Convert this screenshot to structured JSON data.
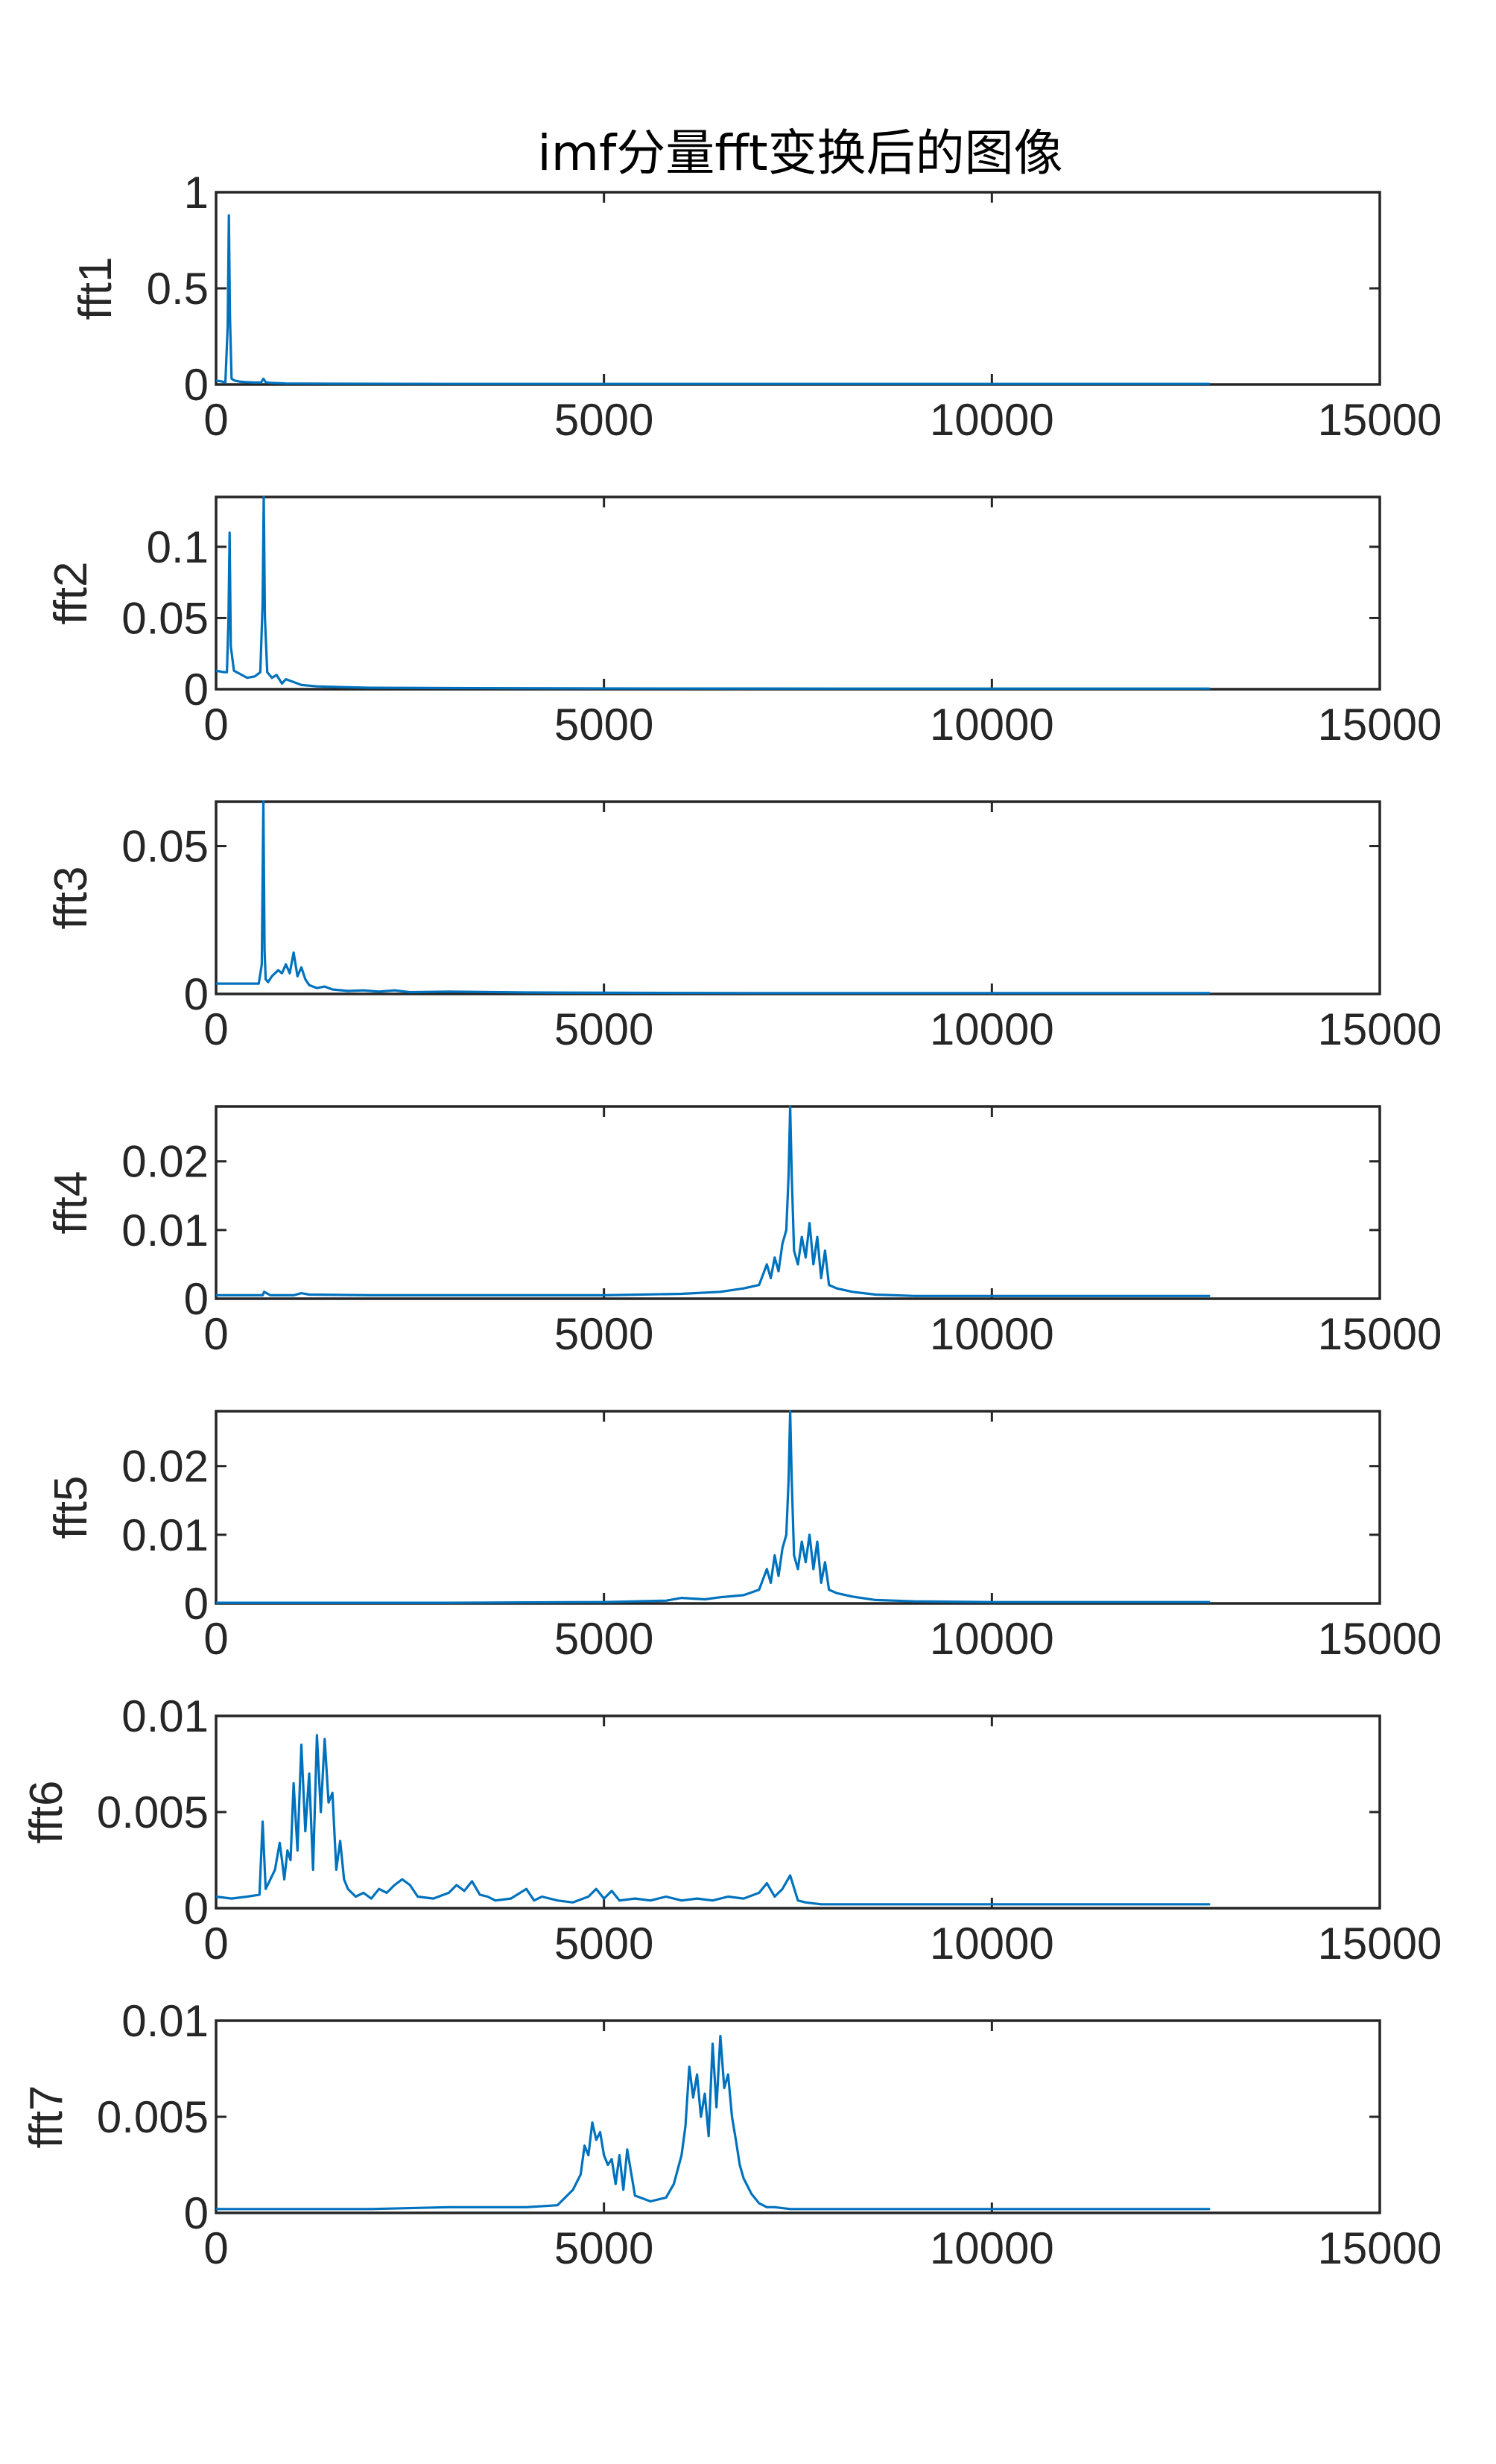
{
  "figure": {
    "title": "imf分量fft变换后的图像"
  },
  "colors": {
    "series": "#0072BD",
    "axis": "#262626",
    "background": "#ffffff"
  },
  "chart_data": [
    {
      "type": "line",
      "title": "imf分量fft变换后的图像",
      "ylabel": "fft1",
      "xlim": [
        0,
        15000
      ],
      "ylim": [
        0,
        1
      ],
      "xticks": [
        0,
        5000,
        10000,
        15000
      ],
      "xtick_labels": [
        "0",
        "5000",
        "10000",
        "15000"
      ],
      "yticks": [
        0,
        0.5,
        1
      ],
      "ytick_labels": [
        "0",
        "0.5",
        "1"
      ],
      "grid": false,
      "x": [
        0,
        80,
        120,
        150,
        165,
        180,
        200,
        240,
        300,
        380,
        500,
        580,
        610,
        640,
        700,
        900,
        1500,
        3000,
        6000,
        9000,
        12800
      ],
      "y": [
        0.02,
        0.015,
        0.01,
        0.3,
        0.88,
        0.35,
        0.03,
        0.02,
        0.015,
        0.012,
        0.01,
        0.01,
        0.03,
        0.012,
        0.008,
        0.005,
        0.004,
        0.003,
        0.003,
        0.003,
        0.003
      ]
    },
    {
      "type": "line",
      "ylabel": "fft2",
      "xlim": [
        0,
        15000
      ],
      "ylim": [
        0,
        0.135
      ],
      "xticks": [
        0,
        5000,
        10000,
        15000
      ],
      "xtick_labels": [
        "0",
        "5000",
        "10000",
        "15000"
      ],
      "yticks": [
        0,
        0.05,
        0.1
      ],
      "ytick_labels": [
        "0",
        "0.05",
        "0.1"
      ],
      "grid": false,
      "x": [
        0,
        100,
        140,
        160,
        175,
        190,
        230,
        300,
        400,
        500,
        570,
        600,
        615,
        630,
        660,
        720,
        780,
        850,
        900,
        1000,
        1100,
        1300,
        1600,
        2000,
        3000,
        5000,
        8000,
        10000,
        12800
      ],
      "y": [
        0.013,
        0.012,
        0.012,
        0.05,
        0.11,
        0.03,
        0.013,
        0.011,
        0.008,
        0.009,
        0.012,
        0.06,
        0.135,
        0.05,
        0.012,
        0.008,
        0.01,
        0.004,
        0.007,
        0.005,
        0.003,
        0.002,
        0.0015,
        0.001,
        0.0008,
        0.0005,
        0.0004,
        0.0004,
        0.0004
      ]
    },
    {
      "type": "line",
      "ylabel": "fft3",
      "xlim": [
        0,
        15000
      ],
      "ylim": [
        0,
        0.065
      ],
      "xticks": [
        0,
        5000,
        10000,
        15000
      ],
      "xtick_labels": [
        "0",
        "5000",
        "10000",
        "15000"
      ],
      "yticks": [
        0,
        0.05
      ],
      "ytick_labels": [
        "0",
        "0.05"
      ],
      "grid": false,
      "x": [
        0,
        300,
        550,
        590,
        610,
        625,
        640,
        670,
        720,
        800,
        850,
        900,
        950,
        1000,
        1050,
        1100,
        1150,
        1200,
        1300,
        1400,
        1500,
        1700,
        1900,
        2100,
        2300,
        2500,
        3000,
        4000,
        5000,
        7000,
        9000,
        11000,
        12800
      ],
      "y": [
        0.0035,
        0.0035,
        0.0035,
        0.01,
        0.065,
        0.015,
        0.005,
        0.004,
        0.006,
        0.008,
        0.007,
        0.01,
        0.007,
        0.014,
        0.006,
        0.009,
        0.005,
        0.003,
        0.002,
        0.0025,
        0.0015,
        0.001,
        0.0012,
        0.0008,
        0.0012,
        0.0006,
        0.0008,
        0.0005,
        0.0004,
        0.0003,
        0.0003,
        0.0003,
        0.0003
      ]
    },
    {
      "type": "line",
      "ylabel": "fft4",
      "xlim": [
        0,
        15000
      ],
      "ylim": [
        0,
        0.028
      ],
      "xticks": [
        0,
        5000,
        10000,
        15000
      ],
      "xtick_labels": [
        "0",
        "5000",
        "10000",
        "15000"
      ],
      "yticks": [
        0,
        0.01,
        0.02
      ],
      "ytick_labels": [
        "0",
        "0.01",
        "0.02"
      ],
      "grid": false,
      "x": [
        0,
        500,
        600,
        620,
        700,
        1000,
        1100,
        1200,
        2000,
        3000,
        4000,
        5000,
        6000,
        6500,
        6800,
        7000,
        7100,
        7150,
        7200,
        7250,
        7300,
        7350,
        7380,
        7400,
        7420,
        7450,
        7500,
        7550,
        7600,
        7650,
        7700,
        7750,
        7800,
        7850,
        7900,
        8000,
        8200,
        8500,
        9000,
        10000,
        11000,
        12000,
        12800
      ],
      "y": [
        0.0005,
        0.0005,
        0.0005,
        0.001,
        0.0005,
        0.0005,
        0.0008,
        0.0006,
        0.0005,
        0.0005,
        0.0005,
        0.0005,
        0.0007,
        0.001,
        0.0015,
        0.002,
        0.005,
        0.003,
        0.006,
        0.004,
        0.008,
        0.01,
        0.018,
        0.028,
        0.018,
        0.007,
        0.005,
        0.009,
        0.006,
        0.011,
        0.005,
        0.009,
        0.003,
        0.007,
        0.002,
        0.0015,
        0.001,
        0.0006,
        0.0004,
        0.0004,
        0.0004,
        0.0004,
        0.0004
      ]
    },
    {
      "type": "line",
      "ylabel": "fft5",
      "xlim": [
        0,
        15000
      ],
      "ylim": [
        0,
        0.028
      ],
      "xticks": [
        0,
        5000,
        10000,
        15000
      ],
      "xtick_labels": [
        "0",
        "5000",
        "10000",
        "15000"
      ],
      "yticks": [
        0,
        0.01,
        0.02
      ],
      "ytick_labels": [
        "0",
        "0.01",
        "0.02"
      ],
      "grid": false,
      "x": [
        0,
        1000,
        3000,
        5000,
        5800,
        6000,
        6300,
        6500,
        6800,
        7000,
        7100,
        7150,
        7200,
        7250,
        7300,
        7350,
        7380,
        7400,
        7420,
        7450,
        7500,
        7550,
        7600,
        7650,
        7700,
        7750,
        7800,
        7850,
        7900,
        8000,
        8200,
        8500,
        9000,
        10000,
        11000,
        12000,
        12800
      ],
      "y": [
        0.0001,
        0.0001,
        0.0001,
        0.0002,
        0.0004,
        0.0008,
        0.0006,
        0.0009,
        0.0012,
        0.002,
        0.005,
        0.003,
        0.007,
        0.004,
        0.008,
        0.01,
        0.018,
        0.028,
        0.018,
        0.007,
        0.005,
        0.009,
        0.006,
        0.01,
        0.005,
        0.009,
        0.003,
        0.006,
        0.002,
        0.0015,
        0.001,
        0.0005,
        0.0003,
        0.0002,
        0.0002,
        0.0002,
        0.0002
      ]
    },
    {
      "type": "line",
      "ylabel": "fft6",
      "xlim": [
        0,
        15000
      ],
      "ylim": [
        0,
        0.01
      ],
      "xticks": [
        0,
        5000,
        10000,
        15000
      ],
      "xtick_labels": [
        "0",
        "5000",
        "10000",
        "15000"
      ],
      "yticks": [
        0,
        0.005,
        0.01
      ],
      "ytick_labels": [
        "0",
        "0.005",
        "0.01"
      ],
      "grid": false,
      "x": [
        0,
        200,
        400,
        560,
        600,
        640,
        700,
        760,
        820,
        850,
        880,
        920,
        960,
        1000,
        1050,
        1100,
        1150,
        1200,
        1250,
        1300,
        1350,
        1400,
        1450,
        1500,
        1550,
        1600,
        1650,
        1700,
        1800,
        1900,
        2000,
        2100,
        2200,
        2300,
        2400,
        2500,
        2600,
        2800,
        3000,
        3100,
        3200,
        3300,
        3400,
        3500,
        3600,
        3800,
        4000,
        4100,
        4200,
        4400,
        4600,
        4800,
        4900,
        5000,
        5100,
        5200,
        5400,
        5600,
        5800,
        6000,
        6200,
        6400,
        6600,
        6800,
        7000,
        7100,
        7200,
        7300,
        7400,
        7500,
        7600,
        7800,
        8000,
        9000,
        10000,
        11000,
        12000,
        12800
      ],
      "y": [
        0.0006,
        0.0005,
        0.0006,
        0.0007,
        0.0045,
        0.001,
        0.0015,
        0.002,
        0.0034,
        0.0025,
        0.0015,
        0.003,
        0.0025,
        0.0065,
        0.003,
        0.0085,
        0.004,
        0.007,
        0.002,
        0.009,
        0.005,
        0.0088,
        0.0055,
        0.006,
        0.002,
        0.0035,
        0.0015,
        0.001,
        0.0006,
        0.0008,
        0.0005,
        0.001,
        0.0008,
        0.0012,
        0.0015,
        0.0012,
        0.0006,
        0.0005,
        0.0008,
        0.0012,
        0.0009,
        0.0014,
        0.0007,
        0.0006,
        0.0004,
        0.0005,
        0.001,
        0.0004,
        0.0006,
        0.0004,
        0.0003,
        0.0006,
        0.001,
        0.0005,
        0.0009,
        0.0004,
        0.0005,
        0.0004,
        0.0006,
        0.0004,
        0.0005,
        0.0004,
        0.0006,
        0.0005,
        0.0008,
        0.0013,
        0.0006,
        0.001,
        0.0017,
        0.0004,
        0.0003,
        0.0002,
        0.0002,
        0.0002,
        0.0002,
        0.0002,
        0.0002,
        0.0002
      ]
    },
    {
      "type": "line",
      "ylabel": "fft7",
      "xlim": [
        0,
        15000
      ],
      "ylim": [
        0,
        0.01
      ],
      "xticks": [
        0,
        5000,
        10000,
        15000
      ],
      "xtick_labels": [
        "0",
        "5000",
        "10000",
        "15000"
      ],
      "yticks": [
        0,
        0.005,
        0.01
      ],
      "ytick_labels": [
        "0",
        "0.005",
        "0.01"
      ],
      "grid": false,
      "x": [
        0,
        1000,
        2000,
        3000,
        4000,
        4400,
        4500,
        4600,
        4700,
        4750,
        4800,
        4850,
        4900,
        4950,
        5000,
        5050,
        5100,
        5150,
        5200,
        5250,
        5300,
        5400,
        5600,
        5800,
        5900,
        6000,
        6050,
        6100,
        6150,
        6200,
        6250,
        6300,
        6350,
        6400,
        6450,
        6500,
        6550,
        6600,
        6650,
        6700,
        6750,
        6800,
        6900,
        7000,
        7100,
        7200,
        7400,
        7600,
        8000,
        9000,
        10000,
        11000,
        12000,
        12800
      ],
      "y": [
        0.0002,
        0.0002,
        0.0002,
        0.0003,
        0.0003,
        0.0004,
        0.0008,
        0.0012,
        0.002,
        0.0035,
        0.003,
        0.0047,
        0.0038,
        0.0042,
        0.003,
        0.0025,
        0.0028,
        0.0015,
        0.003,
        0.0012,
        0.0033,
        0.0009,
        0.0006,
        0.0008,
        0.0015,
        0.003,
        0.0045,
        0.0076,
        0.006,
        0.0072,
        0.005,
        0.0062,
        0.004,
        0.0088,
        0.0055,
        0.0092,
        0.0065,
        0.0072,
        0.005,
        0.0038,
        0.0025,
        0.0018,
        0.001,
        0.0005,
        0.0003,
        0.0003,
        0.0002,
        0.0002,
        0.0002,
        0.0002,
        0.0002,
        0.0002,
        0.0002,
        0.0002
      ]
    }
  ]
}
